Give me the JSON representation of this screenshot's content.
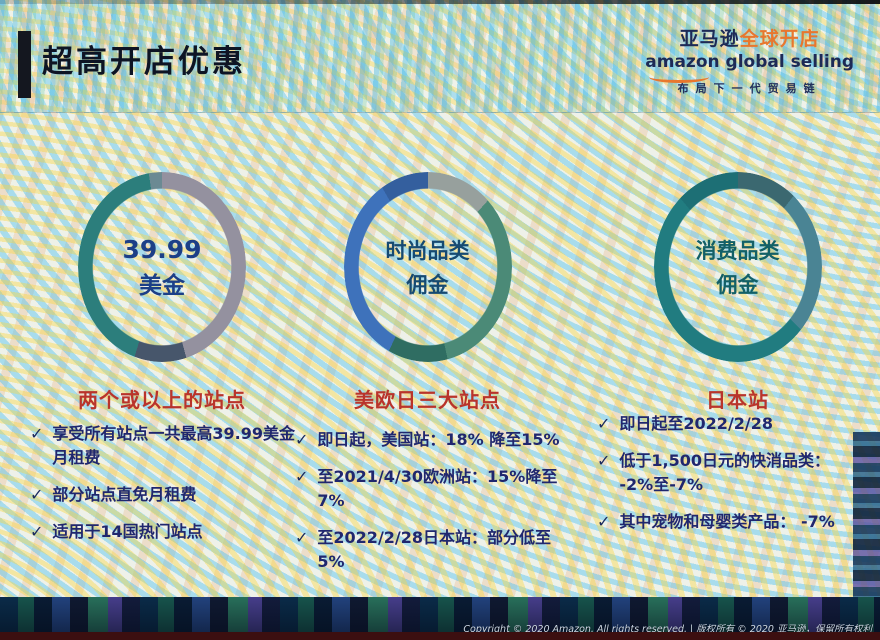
{
  "icons": {
    "check": "✓"
  },
  "slide": {
    "title": "超高开店优惠",
    "logo": {
      "brand_cn": "亚马逊",
      "product_cn": "全球开店",
      "en_brand": "amazon",
      "en_product": "global selling",
      "tagline": "布局下一代贸易链"
    },
    "columns": [
      {
        "circle_line1": "39.99",
        "circle_line2": "美金",
        "caption": "两个或以上的站点",
        "bullets": [
          "享受所有站点一共最高39.99美金月租费",
          "部分站点直免月租费",
          "适用于14国热门站点"
        ]
      },
      {
        "circle_line1": "时尚品类",
        "circle_line2": "佣金",
        "caption": "美欧日三大站点",
        "bullets": [
          "即日起，美国站：18% 降至15%",
          "至2021/4/30欧洲站：15%降至7%",
          "至2022/2/28日本站：部分低至5%"
        ]
      },
      {
        "circle_line1": "消费品类",
        "circle_line2": "佣金",
        "caption": "日本站",
        "bullets": [
          "即日起至2022/2/28",
          "低于1,500日元的快消品类： -2%至-7%",
          "其中宠物和母婴类产品： -7%"
        ]
      }
    ],
    "footer": {
      "copyright": "Copyright © 2020 Amazon. All rights reserved. | 版权所有 © 2020 亚马逊，保留所有权利"
    },
    "colors": {
      "accent_red": "#b9342b",
      "brand_orange": "#e8772e",
      "navy": "#1d2a56",
      "ring_teal": "#2c7e7c",
      "ring_blue": "#3e72bb",
      "ring_gray": "#94919f"
    }
  }
}
